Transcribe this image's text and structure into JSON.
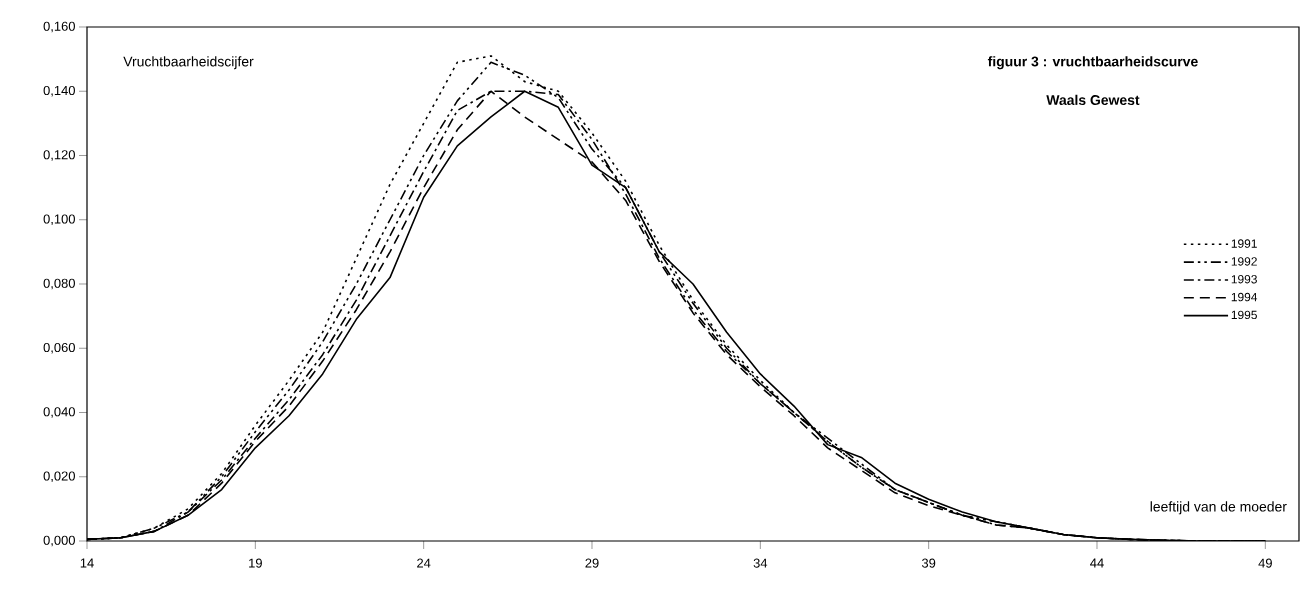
{
  "chart_data": {
    "type": "line",
    "title": "figuur 3 : vruchtbaarheidscurve",
    "subtitle": "Waals Gewest",
    "ylabel": "Vruchtbaarheidscijfer",
    "xlabel": "leeftijd van de moeder",
    "x": [
      14,
      15,
      16,
      17,
      18,
      19,
      20,
      21,
      22,
      23,
      24,
      25,
      26,
      27,
      28,
      29,
      30,
      31,
      32,
      33,
      34,
      35,
      36,
      37,
      38,
      39,
      40,
      41,
      42,
      43,
      44,
      45,
      46,
      47,
      48,
      49
    ],
    "series": [
      {
        "name": "1991",
        "color": "#000000",
        "line_style": "dotted",
        "values": [
          0.0005,
          0.001,
          0.004,
          0.01,
          0.021,
          0.036,
          0.05,
          0.065,
          0.088,
          0.111,
          0.13,
          0.149,
          0.151,
          0.143,
          0.14,
          0.127,
          0.112,
          0.092,
          0.075,
          0.061,
          0.05,
          0.04,
          0.031,
          0.023,
          0.016,
          0.012,
          0.008,
          0.006,
          0.004,
          0.002,
          0.001,
          0.0005,
          0.0002,
          0,
          0,
          0
        ]
      },
      {
        "name": "1992",
        "color": "#000000",
        "line_style": "dashdotdotted",
        "values": [
          0.0005,
          0.001,
          0.004,
          0.009,
          0.02,
          0.034,
          0.047,
          0.062,
          0.08,
          0.1,
          0.12,
          0.137,
          0.149,
          0.145,
          0.138,
          0.122,
          0.11,
          0.09,
          0.074,
          0.06,
          0.049,
          0.04,
          0.032,
          0.024,
          0.016,
          0.012,
          0.008,
          0.006,
          0.004,
          0.002,
          0.001,
          0.0005,
          0.0002,
          0,
          0,
          0
        ]
      },
      {
        "name": "1993",
        "color": "#000000",
        "line_style": "dashdotted",
        "values": [
          0.0005,
          0.001,
          0.003,
          0.009,
          0.019,
          0.032,
          0.044,
          0.058,
          0.075,
          0.095,
          0.115,
          0.134,
          0.14,
          0.14,
          0.139,
          0.125,
          0.108,
          0.088,
          0.072,
          0.059,
          0.049,
          0.04,
          0.031,
          0.023,
          0.016,
          0.012,
          0.008,
          0.005,
          0.004,
          0.002,
          0.001,
          0.0005,
          0.0002,
          0,
          0,
          0
        ]
      },
      {
        "name": "1994",
        "color": "#000000",
        "line_style": "dashed",
        "values": [
          0.0005,
          0.001,
          0.003,
          0.008,
          0.018,
          0.031,
          0.042,
          0.056,
          0.072,
          0.09,
          0.11,
          0.128,
          0.14,
          0.132,
          0.125,
          0.118,
          0.106,
          0.087,
          0.071,
          0.058,
          0.048,
          0.039,
          0.029,
          0.022,
          0.015,
          0.011,
          0.008,
          0.005,
          0.004,
          0.002,
          0.001,
          0.0005,
          0.0002,
          0,
          0,
          0
        ]
      },
      {
        "name": "1995",
        "color": "#000000",
        "line_style": "solid",
        "values": [
          0.0005,
          0.001,
          0.003,
          0.008,
          0.016,
          0.029,
          0.039,
          0.052,
          0.069,
          0.082,
          0.107,
          0.123,
          0.132,
          0.14,
          0.135,
          0.117,
          0.11,
          0.09,
          0.08,
          0.065,
          0.052,
          0.042,
          0.03,
          0.026,
          0.018,
          0.013,
          0.009,
          0.006,
          0.004,
          0.002,
          0.001,
          0.0005,
          0.0002,
          0,
          0,
          0
        ]
      }
    ],
    "xlim": [
      14,
      50
    ],
    "ylim": [
      0,
      0.16
    ],
    "xticks": [
      14,
      19,
      24,
      29,
      34,
      39,
      44,
      49
    ],
    "yticks": [
      {
        "value": 0,
        "label": "0,000"
      },
      {
        "value": 0.02,
        "label": "0,020"
      },
      {
        "value": 0.04,
        "label": "0,040"
      },
      {
        "value": 0.06,
        "label": "0,060"
      },
      {
        "value": 0.08,
        "label": "0,080"
      },
      {
        "value": 0.1,
        "label": "0,100"
      },
      {
        "value": 0.12,
        "label": "0,120"
      },
      {
        "value": 0.14,
        "label": "0,140"
      },
      {
        "value": 0.16,
        "label": "0,160"
      }
    ],
    "legend": "right",
    "marker": "none"
  }
}
